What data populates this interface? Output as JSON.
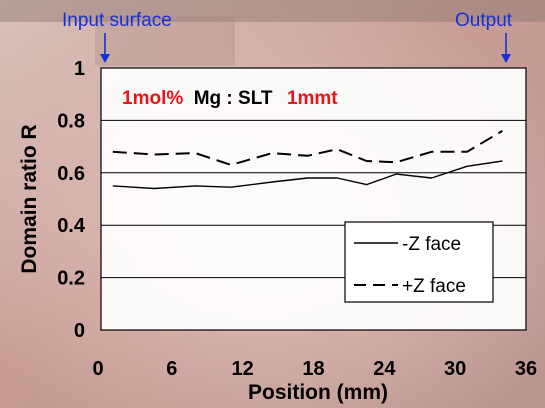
{
  "annotations": {
    "input": "Input surface",
    "output": "Output"
  },
  "title_parts": [
    {
      "text": "1mol%",
      "color": "#e8141a"
    },
    {
      "text": "Mg : SLT",
      "color": "#000000"
    },
    {
      "text": "1mmt",
      "color": "#e8141a"
    }
  ],
  "colors": {
    "annotation": "#1530d8",
    "title_accent": "#e8141a",
    "background": "#c9a8a0"
  },
  "chart_data": {
    "type": "line",
    "xlabel": "Position (mm)",
    "ylabel": "Domain ratio R",
    "xlim": [
      0,
      36
    ],
    "ylim": [
      0,
      1
    ],
    "xticks": [
      "0",
      "6",
      "12",
      "18",
      "24",
      "30",
      "36"
    ],
    "yticks": [
      "0",
      "0.2",
      "0.4",
      "0.6",
      "0.8",
      "1"
    ],
    "grid": "horizontal",
    "legend_position": "bottom-right",
    "series": [
      {
        "name": "-Z face",
        "style": "solid",
        "x": [
          1,
          4.5,
          8,
          11,
          14.5,
          17.5,
          20,
          22.5,
          25,
          28,
          31,
          34
        ],
        "y": [
          0.55,
          0.54,
          0.55,
          0.545,
          0.565,
          0.58,
          0.58,
          0.555,
          0.595,
          0.58,
          0.625,
          0.645
        ]
      },
      {
        "name": "+Z face",
        "style": "dashed",
        "x": [
          1,
          4.5,
          8,
          11,
          14.5,
          17.5,
          20,
          22.5,
          25,
          28,
          31,
          34
        ],
        "y": [
          0.68,
          0.67,
          0.675,
          0.63,
          0.675,
          0.665,
          0.69,
          0.645,
          0.64,
          0.68,
          0.68,
          0.76
        ]
      }
    ]
  }
}
